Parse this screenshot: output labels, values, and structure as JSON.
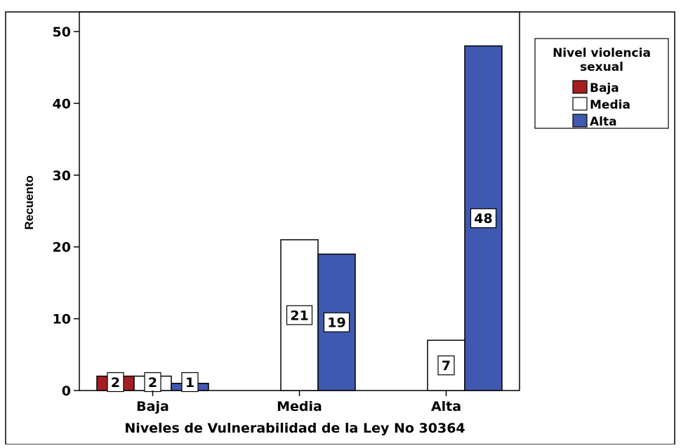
{
  "chart_data": {
    "type": "bar",
    "title": "",
    "xlabel": "Niveles de Vulnerabilidad de la Ley No 30364",
    "ylabel": "Recuento",
    "categories": [
      "Baja",
      "Media",
      "Alta"
    ],
    "ylim": [
      0,
      50
    ],
    "yticks": [
      0,
      10,
      20,
      30,
      40,
      50
    ],
    "legend": {
      "title": "Nivel violencia sexual",
      "position": "top-right"
    },
    "series": [
      {
        "name": "Baja",
        "color": "#a51f22",
        "values": [
          2,
          0,
          0
        ],
        "labels": [
          "2",
          "",
          ""
        ]
      },
      {
        "name": "Media",
        "color": "#ffffff",
        "values": [
          2,
          21,
          7
        ],
        "labels": [
          "2",
          "21",
          "7"
        ]
      },
      {
        "name": "Alta",
        "color": "#3f58b0",
        "values": [
          1,
          19,
          48
        ],
        "labels": [
          "1",
          "19",
          "48"
        ]
      }
    ],
    "grid": false
  }
}
